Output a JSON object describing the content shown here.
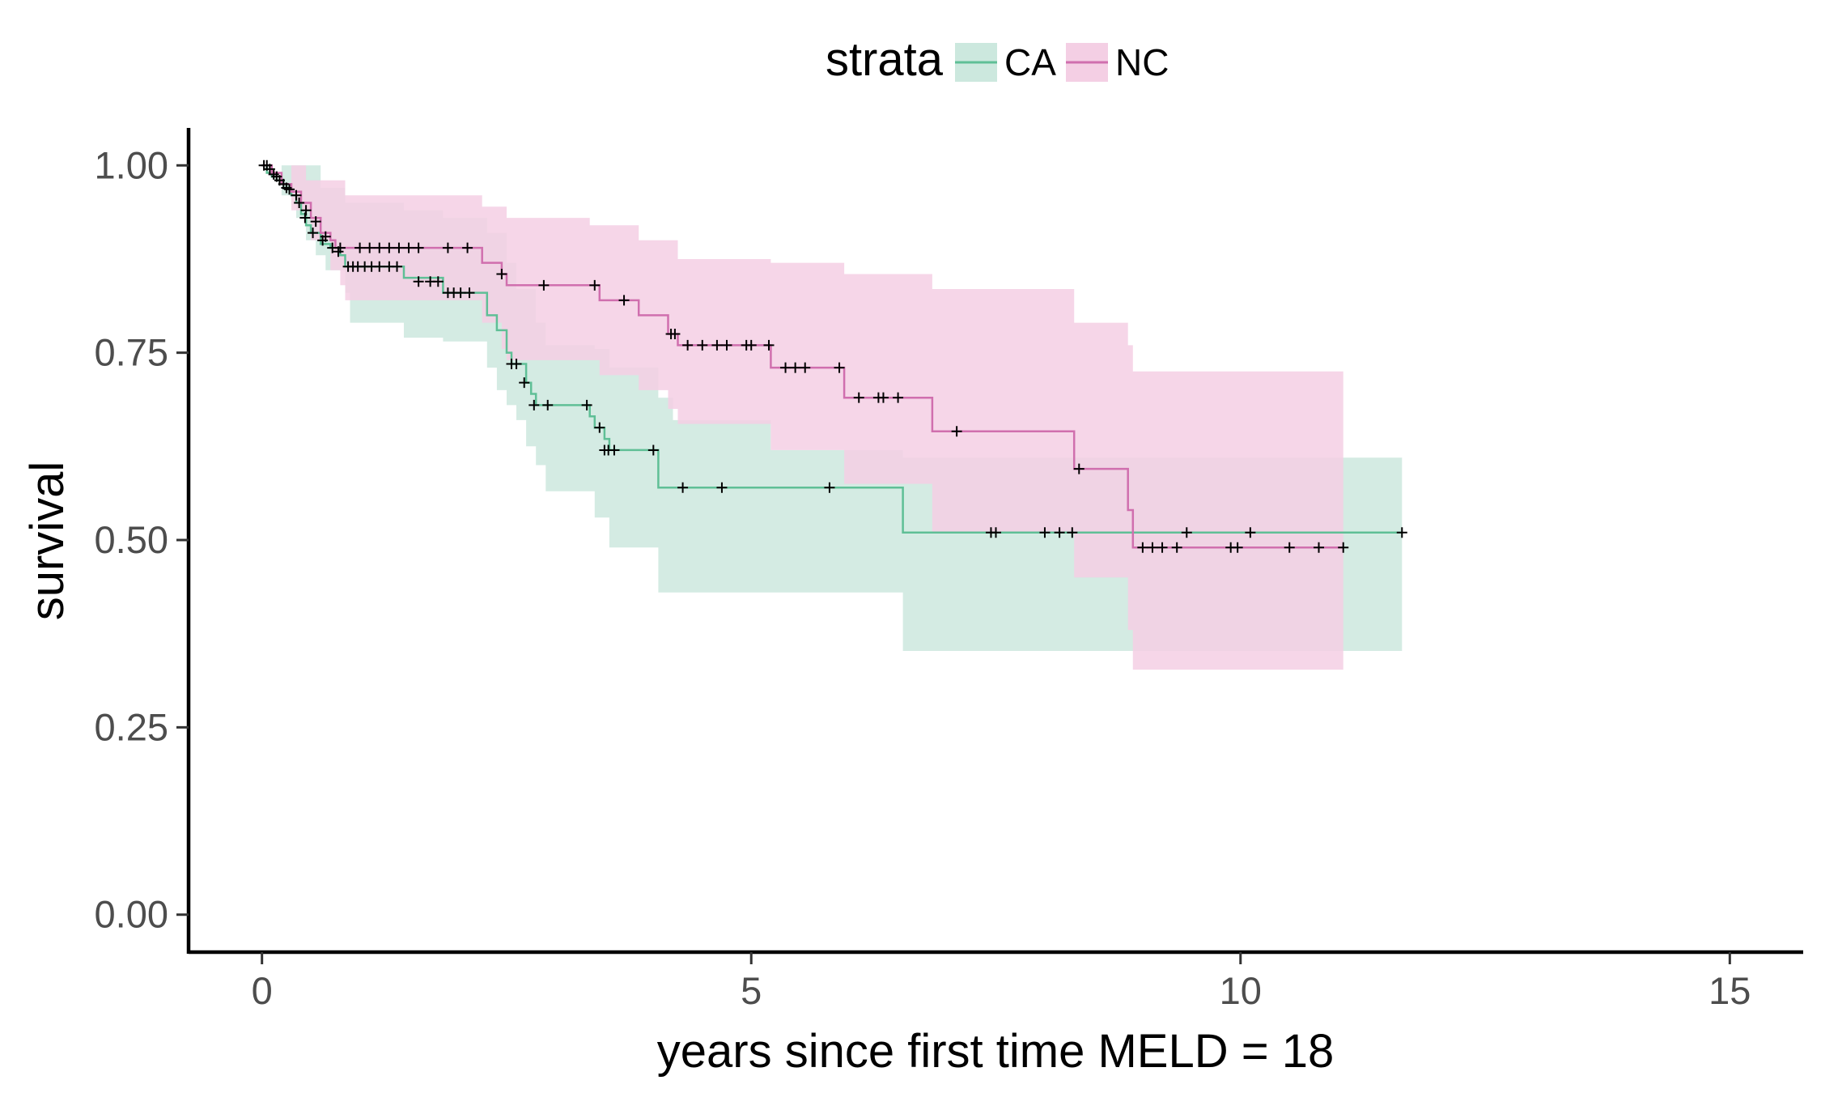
{
  "chart_data": {
    "type": "line",
    "subtype": "kaplan-meier survival curve with confidence bands",
    "title": "",
    "xlabel": "years since first time MELD = 18",
    "ylabel": "survival",
    "xlim": [
      -0.75,
      15.75
    ],
    "ylim": [
      -0.05,
      1.05
    ],
    "x_ticks": [
      0,
      5,
      10,
      15
    ],
    "x_tick_labels": [
      "0",
      "5",
      "10",
      "15"
    ],
    "y_ticks": [
      0,
      0.25,
      0.5,
      0.75,
      1.0
    ],
    "y_tick_labels": [
      "0.00",
      "0.25",
      "0.50",
      "0.75",
      "1.00"
    ],
    "grid": false,
    "legend": {
      "title": "strata",
      "position": "top"
    },
    "censor_mark": "+",
    "series": [
      {
        "name": "CA",
        "color": "#5fbf96",
        "fill": "#cce8de",
        "steps": [
          [
            0,
            1.0
          ],
          [
            0.05,
            0.99
          ],
          [
            0.1,
            0.985
          ],
          [
            0.15,
            0.98
          ],
          [
            0.2,
            0.975
          ],
          [
            0.25,
            0.97
          ],
          [
            0.3,
            0.96
          ],
          [
            0.35,
            0.95
          ],
          [
            0.4,
            0.935
          ],
          [
            0.45,
            0.92
          ],
          [
            0.5,
            0.91
          ],
          [
            0.6,
            0.895
          ],
          [
            0.7,
            0.89
          ],
          [
            0.8,
            0.88
          ],
          [
            0.85,
            0.865
          ],
          [
            1.45,
            0.85
          ],
          [
            1.85,
            0.83
          ],
          [
            2.3,
            0.8
          ],
          [
            2.4,
            0.78
          ],
          [
            2.5,
            0.75
          ],
          [
            2.55,
            0.735
          ],
          [
            2.7,
            0.71
          ],
          [
            2.75,
            0.695
          ],
          [
            2.8,
            0.68
          ],
          [
            3.35,
            0.665
          ],
          [
            3.4,
            0.65
          ],
          [
            3.5,
            0.635
          ],
          [
            3.55,
            0.62
          ],
          [
            4.05,
            0.57
          ],
          [
            6.55,
            0.51
          ],
          [
            11.65,
            0.51
          ]
        ],
        "ci_lower": [
          [
            0,
            1.0
          ],
          [
            0.2,
            0.96
          ],
          [
            0.35,
            0.93
          ],
          [
            0.45,
            0.9
          ],
          [
            0.55,
            0.88
          ],
          [
            0.65,
            0.86
          ],
          [
            0.85,
            0.83
          ],
          [
            0.9,
            0.79
          ],
          [
            1.45,
            0.77
          ],
          [
            1.85,
            0.765
          ],
          [
            2.3,
            0.73
          ],
          [
            2.4,
            0.7
          ],
          [
            2.5,
            0.68
          ],
          [
            2.6,
            0.66
          ],
          [
            2.7,
            0.625
          ],
          [
            2.8,
            0.6
          ],
          [
            2.9,
            0.565
          ],
          [
            3.4,
            0.53
          ],
          [
            3.55,
            0.49
          ],
          [
            4.05,
            0.43
          ],
          [
            6.55,
            0.352
          ],
          [
            11.65,
            0.352
          ]
        ],
        "ci_upper": [
          [
            0,
            1.0
          ],
          [
            0.6,
            0.97
          ],
          [
            0.85,
            0.95
          ],
          [
            1.45,
            0.94
          ],
          [
            1.85,
            0.93
          ],
          [
            2.3,
            0.91
          ],
          [
            2.5,
            0.87
          ],
          [
            2.6,
            0.835
          ],
          [
            2.8,
            0.79
          ],
          [
            2.9,
            0.76
          ],
          [
            3.4,
            0.755
          ],
          [
            3.55,
            0.73
          ],
          [
            4.05,
            0.69
          ],
          [
            4.2,
            0.66
          ],
          [
            5.2,
            0.66
          ],
          [
            5.2,
            0.62
          ],
          [
            6.55,
            0.61
          ],
          [
            6.85,
            0.61
          ],
          [
            11.65,
            0.73
          ]
        ],
        "censored": [
          [
            0.05,
            1.0
          ],
          [
            0.08,
            0.995
          ],
          [
            0.12,
            0.988
          ],
          [
            0.18,
            0.98
          ],
          [
            0.22,
            0.975
          ],
          [
            0.28,
            0.968
          ],
          [
            0.38,
            0.95
          ],
          [
            0.44,
            0.93
          ],
          [
            0.52,
            0.91
          ],
          [
            0.62,
            0.9
          ],
          [
            0.72,
            0.89
          ],
          [
            0.78,
            0.885
          ],
          [
            0.88,
            0.865
          ],
          [
            0.93,
            0.865
          ],
          [
            0.98,
            0.865
          ],
          [
            1.05,
            0.865
          ],
          [
            1.12,
            0.865
          ],
          [
            1.2,
            0.865
          ],
          [
            1.3,
            0.865
          ],
          [
            1.38,
            0.865
          ],
          [
            1.6,
            0.845
          ],
          [
            1.72,
            0.845
          ],
          [
            1.8,
            0.845
          ],
          [
            1.9,
            0.83
          ],
          [
            1.96,
            0.83
          ],
          [
            2.03,
            0.83
          ],
          [
            2.12,
            0.83
          ],
          [
            2.55,
            0.735
          ],
          [
            2.6,
            0.735
          ],
          [
            2.68,
            0.71
          ],
          [
            2.78,
            0.68
          ],
          [
            2.92,
            0.68
          ],
          [
            3.32,
            0.68
          ],
          [
            3.45,
            0.65
          ],
          [
            3.5,
            0.62
          ],
          [
            3.54,
            0.62
          ],
          [
            3.6,
            0.62
          ],
          [
            4.0,
            0.62
          ],
          [
            4.3,
            0.57
          ],
          [
            4.7,
            0.57
          ],
          [
            5.8,
            0.57
          ],
          [
            7.45,
            0.51
          ],
          [
            7.5,
            0.51
          ],
          [
            8.0,
            0.51
          ],
          [
            8.15,
            0.51
          ],
          [
            8.28,
            0.51
          ],
          [
            9.45,
            0.51
          ],
          [
            10.1,
            0.51
          ],
          [
            11.65,
            0.51
          ]
        ]
      },
      {
        "name": "NC",
        "color": "#d06fae",
        "fill": "#f4cfe4",
        "steps": [
          [
            0,
            1.0
          ],
          [
            0.1,
            0.99
          ],
          [
            0.2,
            0.975
          ],
          [
            0.3,
            0.965
          ],
          [
            0.4,
            0.95
          ],
          [
            0.5,
            0.93
          ],
          [
            0.6,
            0.91
          ],
          [
            0.7,
            0.9
          ],
          [
            0.75,
            0.89
          ],
          [
            2.25,
            0.87
          ],
          [
            2.45,
            0.855
          ],
          [
            2.5,
            0.84
          ],
          [
            3.45,
            0.82
          ],
          [
            3.85,
            0.8
          ],
          [
            4.15,
            0.775
          ],
          [
            4.25,
            0.76
          ],
          [
            5.2,
            0.73
          ],
          [
            5.95,
            0.69
          ],
          [
            6.85,
            0.645
          ],
          [
            8.3,
            0.595
          ],
          [
            8.85,
            0.54
          ],
          [
            8.9,
            0.49
          ],
          [
            11.05,
            0.49
          ]
        ],
        "ci_lower": [
          [
            0,
            1.0
          ],
          [
            0.3,
            0.94
          ],
          [
            0.5,
            0.9
          ],
          [
            0.7,
            0.86
          ],
          [
            0.8,
            0.84
          ],
          [
            0.85,
            0.82
          ],
          [
            2.25,
            0.79
          ],
          [
            2.45,
            0.755
          ],
          [
            2.5,
            0.74
          ],
          [
            3.45,
            0.72
          ],
          [
            3.85,
            0.7
          ],
          [
            4.15,
            0.675
          ],
          [
            4.25,
            0.655
          ],
          [
            5.2,
            0.62
          ],
          [
            5.95,
            0.575
          ],
          [
            6.85,
            0.51
          ],
          [
            8.3,
            0.45
          ],
          [
            8.85,
            0.38
          ],
          [
            8.9,
            0.327
          ],
          [
            11.05,
            0.327
          ]
        ],
        "ci_upper": [
          [
            0,
            1.0
          ],
          [
            0.45,
            0.98
          ],
          [
            0.85,
            0.96
          ],
          [
            2.25,
            0.945
          ],
          [
            2.5,
            0.93
          ],
          [
            3.35,
            0.92
          ],
          [
            3.85,
            0.9
          ],
          [
            4.25,
            0.875
          ],
          [
            5.2,
            0.87
          ],
          [
            5.95,
            0.855
          ],
          [
            6.85,
            0.835
          ],
          [
            8.3,
            0.79
          ],
          [
            8.85,
            0.76
          ],
          [
            8.9,
            0.725
          ],
          [
            11.05,
            0.725
          ]
        ],
        "censored": [
          [
            0.02,
            1.0
          ],
          [
            0.15,
            0.985
          ],
          [
            0.25,
            0.97
          ],
          [
            0.35,
            0.96
          ],
          [
            0.45,
            0.94
          ],
          [
            0.55,
            0.925
          ],
          [
            0.65,
            0.905
          ],
          [
            0.8,
            0.89
          ],
          [
            1.0,
            0.89
          ],
          [
            1.1,
            0.89
          ],
          [
            1.2,
            0.89
          ],
          [
            1.3,
            0.89
          ],
          [
            1.4,
            0.89
          ],
          [
            1.5,
            0.89
          ],
          [
            1.6,
            0.89
          ],
          [
            1.9,
            0.89
          ],
          [
            2.1,
            0.89
          ],
          [
            2.45,
            0.855
          ],
          [
            2.88,
            0.84
          ],
          [
            3.4,
            0.84
          ],
          [
            3.7,
            0.82
          ],
          [
            4.18,
            0.775
          ],
          [
            4.22,
            0.775
          ],
          [
            4.35,
            0.76
          ],
          [
            4.5,
            0.76
          ],
          [
            4.65,
            0.76
          ],
          [
            4.75,
            0.76
          ],
          [
            4.95,
            0.76
          ],
          [
            5.0,
            0.76
          ],
          [
            5.18,
            0.76
          ],
          [
            5.35,
            0.73
          ],
          [
            5.45,
            0.73
          ],
          [
            5.55,
            0.73
          ],
          [
            5.9,
            0.73
          ],
          [
            6.1,
            0.69
          ],
          [
            6.3,
            0.69
          ],
          [
            6.35,
            0.69
          ],
          [
            6.5,
            0.69
          ],
          [
            7.1,
            0.645
          ],
          [
            8.35,
            0.595
          ],
          [
            9.0,
            0.49
          ],
          [
            9.1,
            0.49
          ],
          [
            9.2,
            0.49
          ],
          [
            9.35,
            0.49
          ],
          [
            9.9,
            0.49
          ],
          [
            9.97,
            0.49
          ],
          [
            10.5,
            0.49
          ],
          [
            10.8,
            0.49
          ],
          [
            11.05,
            0.49
          ]
        ]
      }
    ]
  }
}
